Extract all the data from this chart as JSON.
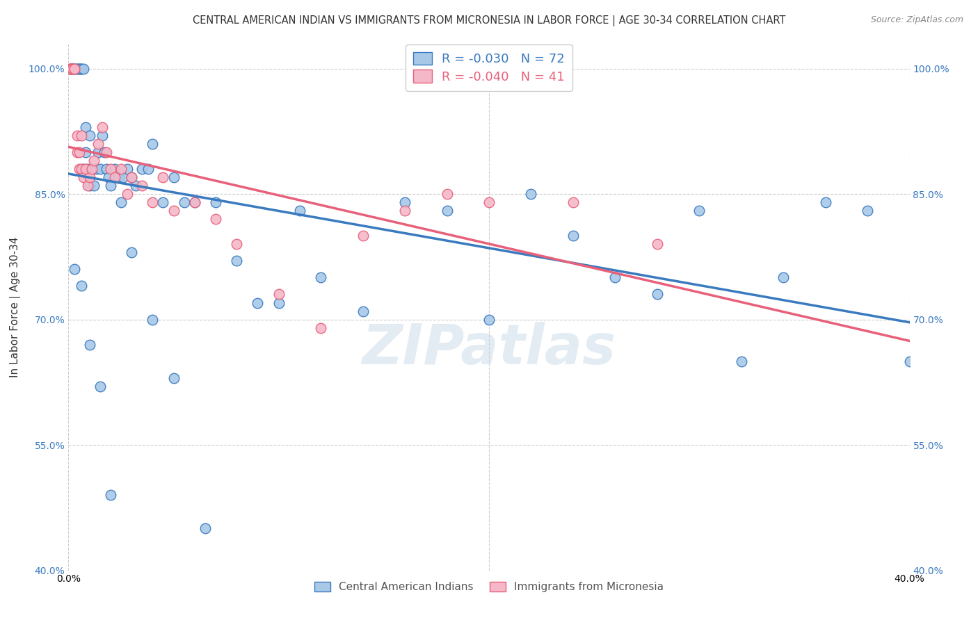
{
  "title": "CENTRAL AMERICAN INDIAN VS IMMIGRANTS FROM MICRONESIA IN LABOR FORCE | AGE 30-34 CORRELATION CHART",
  "source": "Source: ZipAtlas.com",
  "ylabel": "In Labor Force | Age 30-34",
  "blue_label": "Central American Indians",
  "pink_label": "Immigrants from Micronesia",
  "blue_R": -0.03,
  "blue_N": 72,
  "pink_R": -0.04,
  "pink_N": 41,
  "xlim": [
    0.0,
    0.4
  ],
  "ylim": [
    0.4,
    1.03
  ],
  "yticks": [
    0.4,
    0.55,
    0.7,
    0.85,
    1.0
  ],
  "ytick_labels": [
    "40.0%",
    "55.0%",
    "70.0%",
    "85.0%",
    "100.0%"
  ],
  "blue_color": "#a8c8e8",
  "pink_color": "#f4b8c8",
  "blue_line_color": "#3a7abf",
  "pink_line_color": "#e8607a",
  "background_color": "#ffffff",
  "watermark": "ZIPatlas",
  "title_fontsize": 10.5,
  "axis_label_fontsize": 11,
  "tick_fontsize": 10,
  "legend_fontsize": 13,
  "source_fontsize": 9,
  "blue_scatter_x": [
    0.001,
    0.001,
    0.002,
    0.002,
    0.003,
    0.003,
    0.004,
    0.004,
    0.005,
    0.005,
    0.006,
    0.006,
    0.007,
    0.007,
    0.008,
    0.008,
    0.009,
    0.01,
    0.01,
    0.011,
    0.012,
    0.013,
    0.014,
    0.015,
    0.016,
    0.017,
    0.018,
    0.019,
    0.02,
    0.022,
    0.024,
    0.026,
    0.028,
    0.03,
    0.032,
    0.035,
    0.038,
    0.04,
    0.045,
    0.05,
    0.055,
    0.06,
    0.07,
    0.08,
    0.09,
    0.1,
    0.11,
    0.12,
    0.14,
    0.16,
    0.18,
    0.2,
    0.22,
    0.24,
    0.26,
    0.28,
    0.3,
    0.32,
    0.34,
    0.36,
    0.38,
    0.4,
    0.003,
    0.006,
    0.01,
    0.015,
    0.02,
    0.025,
    0.03,
    0.04,
    0.05,
    0.065
  ],
  "blue_scatter_y": [
    1.0,
    1.0,
    1.0,
    1.0,
    1.0,
    1.0,
    1.0,
    1.0,
    1.0,
    1.0,
    1.0,
    1.0,
    1.0,
    0.88,
    0.93,
    0.9,
    0.88,
    0.86,
    0.92,
    0.88,
    0.86,
    0.88,
    0.9,
    0.88,
    0.92,
    0.9,
    0.88,
    0.87,
    0.86,
    0.88,
    0.87,
    0.87,
    0.88,
    0.87,
    0.86,
    0.88,
    0.88,
    0.91,
    0.84,
    0.87,
    0.84,
    0.84,
    0.84,
    0.77,
    0.72,
    0.72,
    0.83,
    0.75,
    0.71,
    0.84,
    0.83,
    0.7,
    0.85,
    0.8,
    0.75,
    0.73,
    0.83,
    0.65,
    0.75,
    0.84,
    0.83,
    0.65,
    0.76,
    0.74,
    0.67,
    0.62,
    0.49,
    0.84,
    0.78,
    0.7,
    0.63,
    0.45
  ],
  "pink_scatter_x": [
    0.001,
    0.001,
    0.002,
    0.002,
    0.003,
    0.003,
    0.004,
    0.004,
    0.005,
    0.005,
    0.006,
    0.006,
    0.007,
    0.008,
    0.009,
    0.01,
    0.011,
    0.012,
    0.014,
    0.016,
    0.018,
    0.02,
    0.022,
    0.025,
    0.028,
    0.03,
    0.035,
    0.04,
    0.045,
    0.05,
    0.06,
    0.07,
    0.08,
    0.1,
    0.12,
    0.14,
    0.16,
    0.18,
    0.2,
    0.24,
    0.28
  ],
  "pink_scatter_y": [
    1.0,
    1.0,
    1.0,
    1.0,
    1.0,
    1.0,
    0.92,
    0.9,
    0.88,
    0.9,
    0.92,
    0.88,
    0.87,
    0.88,
    0.86,
    0.87,
    0.88,
    0.89,
    0.91,
    0.93,
    0.9,
    0.88,
    0.87,
    0.88,
    0.85,
    0.87,
    0.86,
    0.84,
    0.87,
    0.83,
    0.84,
    0.82,
    0.79,
    0.73,
    0.69,
    0.8,
    0.83,
    0.85,
    0.84,
    0.84,
    0.79
  ]
}
